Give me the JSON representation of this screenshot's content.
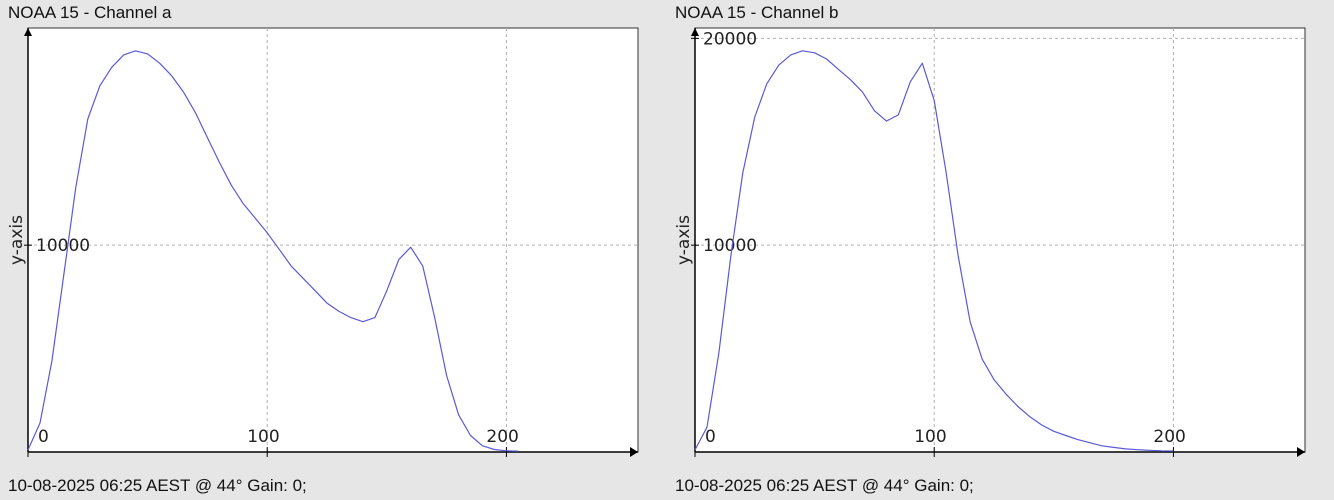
{
  "chart_data": [
    {
      "type": "line",
      "title": "NOAA 15 - Channel a",
      "ylabel": "y-axis",
      "xlabel": "",
      "footer": "10-08-2025 06:25 AEST @ 44° Gain: 0;",
      "xlim": [
        0,
        255
      ],
      "ylim": [
        0,
        20500
      ],
      "grid": true,
      "x_ticks": [
        0,
        100,
        200
      ],
      "y_ticks": [
        10000
      ],
      "line_color": "#5a5ad6",
      "series": [
        {
          "x": [
            0,
            5,
            10,
            15,
            20,
            25,
            30,
            35,
            40,
            45,
            50,
            55,
            60,
            65,
            70,
            75,
            80,
            85,
            90,
            95,
            100,
            105,
            110,
            115,
            120,
            125,
            130,
            135,
            140,
            145,
            150,
            155,
            160,
            165,
            170,
            175,
            180,
            185,
            190,
            195,
            200,
            205
          ],
          "y": [
            100,
            1400,
            4400,
            8600,
            12800,
            16100,
            17700,
            18600,
            19200,
            19400,
            19250,
            18800,
            18200,
            17400,
            16400,
            15200,
            14000,
            12900,
            12000,
            11300,
            10600,
            9800,
            9000,
            8400,
            7800,
            7200,
            6800,
            6500,
            6300,
            6500,
            7800,
            9300,
            9900,
            9000,
            6500,
            3700,
            1800,
            800,
            300,
            120,
            60,
            40
          ]
        }
      ]
    },
    {
      "type": "line",
      "title": "NOAA 15 - Channel b",
      "ylabel": "y-axis",
      "xlabel": "",
      "footer": "10-08-2025 06:25 AEST @ 44° Gain: 0;",
      "xlim": [
        0,
        255
      ],
      "ylim": [
        0,
        20500
      ],
      "grid": true,
      "x_ticks": [
        0,
        100,
        200
      ],
      "y_ticks": [
        10000,
        20000
      ],
      "line_color": "#5a5ad6",
      "series": [
        {
          "x": [
            0,
            5,
            10,
            15,
            20,
            25,
            30,
            35,
            40,
            45,
            50,
            55,
            60,
            65,
            70,
            75,
            80,
            85,
            90,
            95,
            100,
            105,
            110,
            115,
            120,
            125,
            130,
            135,
            140,
            145,
            150,
            155,
            160,
            165,
            170,
            175,
            180,
            185,
            190,
            195,
            200
          ],
          "y": [
            100,
            1200,
            4800,
            9500,
            13500,
            16200,
            17800,
            18700,
            19200,
            19400,
            19300,
            19000,
            18500,
            18000,
            17400,
            16500,
            16000,
            16300,
            17900,
            18800,
            17000,
            13500,
            9500,
            6300,
            4500,
            3500,
            2800,
            2200,
            1700,
            1300,
            1000,
            800,
            600,
            450,
            300,
            220,
            150,
            110,
            80,
            60,
            50
          ]
        }
      ]
    }
  ]
}
